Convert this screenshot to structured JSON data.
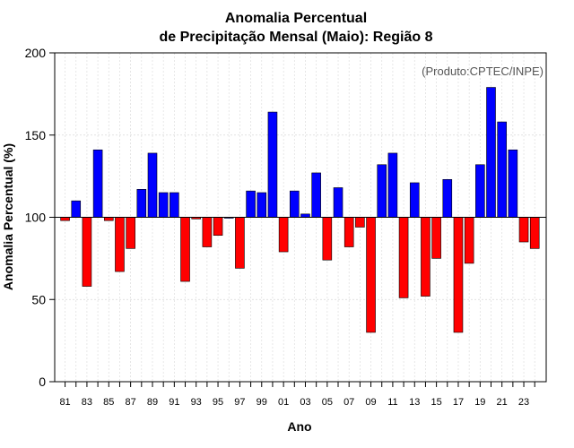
{
  "chart_data": {
    "type": "bar",
    "title_line1": "Anomalia Percentual",
    "title_line2": "de Precipitação Mensal (Maio): Região 8",
    "xlabel": "Ano",
    "ylabel": "Anomalia Percentual (%)",
    "credit": "(Produto:CPTEC/INPE)",
    "ylim": [
      0,
      200
    ],
    "yticks": [
      0,
      50,
      100,
      150,
      200
    ],
    "ytick_labels": [
      "0",
      "50",
      "100",
      "150",
      "200"
    ],
    "baseline": 100,
    "grid": true,
    "colors": {
      "above": "#0000ff",
      "below": "#ff0000",
      "edge": "#000000"
    },
    "categories": [
      "81",
      "82",
      "83",
      "84",
      "85",
      "86",
      "87",
      "88",
      "89",
      "90",
      "91",
      "92",
      "93",
      "94",
      "95",
      "96",
      "97",
      "98",
      "99",
      "00",
      "01",
      "02",
      "03",
      "04",
      "05",
      "06",
      "07",
      "08",
      "09",
      "10",
      "11",
      "12",
      "13",
      "14",
      "15",
      "16",
      "17",
      "18",
      "19",
      "20",
      "21",
      "22",
      "23",
      "24"
    ],
    "xtick_labels": [
      "81",
      "83",
      "85",
      "87",
      "89",
      "91",
      "93",
      "95",
      "97",
      "99",
      "01",
      "03",
      "05",
      "07",
      "09",
      "11",
      "13",
      "15",
      "17",
      "19",
      "21",
      "23"
    ],
    "values": [
      98,
      110,
      58,
      141,
      98,
      67,
      81,
      117,
      139,
      115,
      115,
      61,
      99,
      82,
      89,
      100,
      69,
      116,
      115,
      164,
      79,
      116,
      102,
      127,
      74,
      118,
      82,
      94,
      30,
      132,
      139,
      51,
      121,
      52,
      75,
      123,
      30,
      72,
      132,
      179,
      158,
      141,
      85,
      81
    ]
  }
}
